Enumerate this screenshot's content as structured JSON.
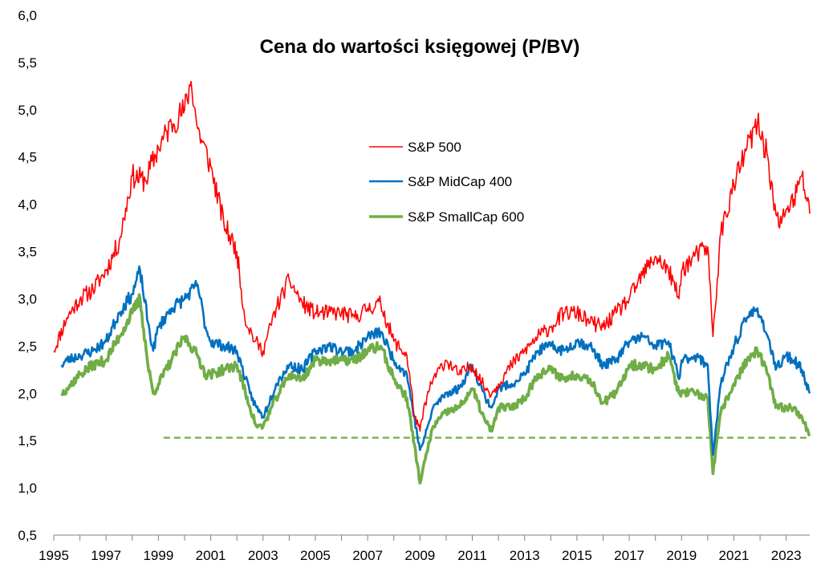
{
  "chart_data": {
    "type": "line",
    "title": "Cena do wartości księgowej (P/BV)",
    "xlabel": "",
    "ylabel": "",
    "xlim": [
      1995,
      2023.9
    ],
    "ylim": [
      0.5,
      6.0
    ],
    "x_ticks": [
      1995,
      1997,
      1999,
      2001,
      2003,
      2005,
      2007,
      2009,
      2011,
      2013,
      2015,
      2017,
      2019,
      2021,
      2023
    ],
    "x_tick_labels": [
      "1995",
      "1997",
      "1999",
      "2001",
      "2003",
      "2005",
      "2007",
      "2009",
      "2011",
      "2013",
      "2015",
      "2017",
      "2019",
      "2021",
      "2023"
    ],
    "y_ticks": [
      0.5,
      1.0,
      1.5,
      2.0,
      2.5,
      3.0,
      3.5,
      4.0,
      4.5,
      5.0,
      5.5,
      6.0
    ],
    "y_tick_labels": [
      "0,5",
      "1,0",
      "1,5",
      "2,0",
      "2,5",
      "3,0",
      "3,5",
      "4,0",
      "4,5",
      "5,0",
      "5,5",
      "6,0"
    ],
    "grid": false,
    "legend_position": "center-top",
    "series": [
      {
        "name": "S&P 500",
        "color": "#ff0000",
        "x": [
          1995.0,
          1995.5,
          1996.0,
          1996.5,
          1997.0,
          1997.5,
          1998.0,
          1998.5,
          1999.0,
          1999.5,
          2000.0,
          2000.25,
          2000.5,
          2001.0,
          2001.5,
          2002.0,
          2002.3,
          2002.7,
          2003.0,
          2003.5,
          2004.0,
          2004.5,
          2005.0,
          2005.5,
          2006.0,
          2006.5,
          2007.0,
          2007.5,
          2008.0,
          2008.5,
          2008.8,
          2009.0,
          2009.2,
          2009.5,
          2010.0,
          2010.5,
          2011.0,
          2011.5,
          2011.75,
          2012.0,
          2012.5,
          2013.0,
          2013.5,
          2014.0,
          2014.5,
          2015.0,
          2015.5,
          2016.0,
          2016.5,
          2017.0,
          2017.5,
          2018.0,
          2018.5,
          2018.9,
          2019.0,
          2019.5,
          2020.0,
          2020.2,
          2020.5,
          2021.0,
          2021.5,
          2021.9,
          2022.3,
          2022.5,
          2022.75,
          2023.0,
          2023.3,
          2023.6,
          2023.9
        ],
        "values": [
          2.45,
          2.8,
          3.0,
          3.1,
          3.3,
          3.6,
          4.3,
          4.25,
          4.6,
          4.85,
          5.0,
          5.3,
          4.8,
          4.4,
          3.8,
          3.5,
          2.8,
          2.55,
          2.45,
          2.9,
          3.2,
          2.95,
          2.85,
          2.85,
          2.85,
          2.8,
          2.9,
          2.95,
          2.55,
          2.4,
          1.75,
          1.6,
          1.9,
          2.15,
          2.35,
          2.2,
          2.3,
          2.05,
          2.0,
          2.1,
          2.3,
          2.45,
          2.6,
          2.7,
          2.85,
          2.85,
          2.75,
          2.7,
          2.85,
          3.0,
          3.25,
          3.45,
          3.3,
          3.0,
          3.3,
          3.45,
          3.55,
          2.6,
          3.7,
          4.2,
          4.6,
          4.85,
          4.5,
          4.05,
          3.75,
          3.95,
          4.05,
          4.3,
          3.9
        ]
      },
      {
        "name": "S&P MidCap 400",
        "color": "#0070c0",
        "x": [
          1995.3,
          1995.5,
          1996.0,
          1996.5,
          1997.0,
          1997.5,
          1998.0,
          1998.3,
          1998.6,
          1998.8,
          1999.0,
          1999.5,
          2000.0,
          2000.5,
          2000.8,
          2001.0,
          2001.5,
          2002.0,
          2002.5,
          2002.75,
          2003.0,
          2003.5,
          2004.0,
          2004.5,
          2005.0,
          2005.5,
          2006.0,
          2006.5,
          2007.0,
          2007.5,
          2008.0,
          2008.5,
          2008.9,
          2009.0,
          2009.2,
          2009.5,
          2010.0,
          2010.5,
          2011.0,
          2011.5,
          2011.75,
          2012.0,
          2012.5,
          2013.0,
          2013.5,
          2014.0,
          2014.5,
          2015.0,
          2015.5,
          2016.0,
          2016.5,
          2017.0,
          2017.5,
          2018.0,
          2018.5,
          2018.9,
          2019.0,
          2019.5,
          2020.0,
          2020.2,
          2020.5,
          2021.0,
          2021.5,
          2021.9,
          2022.3,
          2022.6,
          2023.0,
          2023.3,
          2023.6,
          2023.9
        ],
        "values": [
          2.3,
          2.35,
          2.4,
          2.45,
          2.55,
          2.85,
          3.05,
          3.3,
          2.75,
          2.45,
          2.7,
          2.9,
          3.0,
          3.15,
          2.7,
          2.55,
          2.5,
          2.45,
          2.0,
          1.85,
          1.75,
          2.1,
          2.3,
          2.25,
          2.45,
          2.5,
          2.45,
          2.45,
          2.6,
          2.65,
          2.35,
          2.2,
          1.55,
          1.4,
          1.55,
          1.85,
          2.0,
          2.05,
          2.3,
          1.95,
          1.85,
          2.05,
          2.1,
          2.2,
          2.45,
          2.5,
          2.45,
          2.55,
          2.5,
          2.3,
          2.35,
          2.55,
          2.6,
          2.5,
          2.55,
          2.15,
          2.35,
          2.4,
          2.3,
          1.35,
          2.1,
          2.5,
          2.8,
          2.9,
          2.6,
          2.25,
          2.4,
          2.35,
          2.25,
          2.0
        ]
      },
      {
        "name": "S&P SmallCap 600",
        "color": "#70ad47",
        "x": [
          1995.3,
          1995.5,
          1996.0,
          1996.5,
          1997.0,
          1997.5,
          1998.0,
          1998.3,
          1998.6,
          1998.8,
          1999.0,
          1999.5,
          2000.0,
          2000.5,
          2000.8,
          2001.0,
          2001.5,
          2002.0,
          2002.5,
          2002.75,
          2003.0,
          2003.5,
          2004.0,
          2004.5,
          2005.0,
          2005.5,
          2006.0,
          2006.5,
          2007.0,
          2007.5,
          2008.0,
          2008.5,
          2008.9,
          2009.0,
          2009.2,
          2009.5,
          2010.0,
          2010.5,
          2011.0,
          2011.5,
          2011.75,
          2012.0,
          2012.5,
          2013.0,
          2013.5,
          2014.0,
          2014.5,
          2015.0,
          2015.5,
          2016.0,
          2016.5,
          2017.0,
          2017.5,
          2018.0,
          2018.5,
          2018.9,
          2019.0,
          2019.5,
          2020.0,
          2020.2,
          2020.5,
          2021.0,
          2021.5,
          2021.9,
          2022.3,
          2022.6,
          2023.0,
          2023.3,
          2023.6,
          2023.9
        ],
        "values": [
          2.0,
          2.05,
          2.2,
          2.3,
          2.35,
          2.6,
          2.85,
          3.0,
          2.3,
          2.0,
          2.1,
          2.35,
          2.6,
          2.4,
          2.2,
          2.2,
          2.25,
          2.3,
          1.85,
          1.65,
          1.65,
          1.95,
          2.2,
          2.15,
          2.35,
          2.35,
          2.35,
          2.35,
          2.45,
          2.5,
          2.15,
          1.95,
          1.25,
          1.05,
          1.3,
          1.65,
          1.8,
          1.85,
          2.05,
          1.7,
          1.6,
          1.85,
          1.85,
          1.95,
          2.2,
          2.25,
          2.15,
          2.2,
          2.15,
          1.9,
          2.0,
          2.3,
          2.3,
          2.25,
          2.4,
          2.0,
          2.0,
          2.0,
          1.95,
          1.15,
          1.8,
          2.1,
          2.35,
          2.45,
          2.2,
          1.85,
          1.85,
          1.85,
          1.75,
          1.55
        ]
      }
    ],
    "reference_line": {
      "value": 1.53,
      "x_start": 1999.2,
      "x_end": 2023.9,
      "color": "#70ad47",
      "style": "dashed"
    }
  }
}
